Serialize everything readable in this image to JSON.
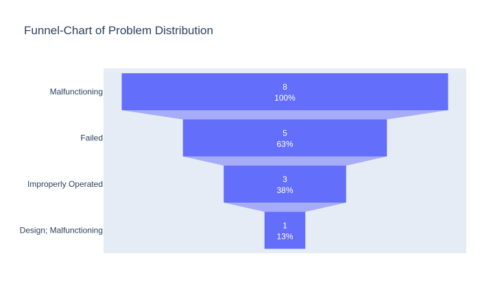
{
  "chart_data": {
    "type": "funnel",
    "title": "Funnel-Chart of Problem Distribution",
    "categories": [
      "Malfunctioning",
      "Failed",
      "Improperly Operated",
      "Design; Malfunctioning"
    ],
    "values": [
      8,
      5,
      3,
      1
    ],
    "percent_labels": [
      "100%",
      "63%",
      "38%",
      "13%"
    ],
    "colors": {
      "bar": "#636efa",
      "connector": "#a6acf8",
      "plot_background": "#e5ecf6",
      "title_text": "#2a3f5f",
      "value_text": "#ffffff"
    }
  }
}
